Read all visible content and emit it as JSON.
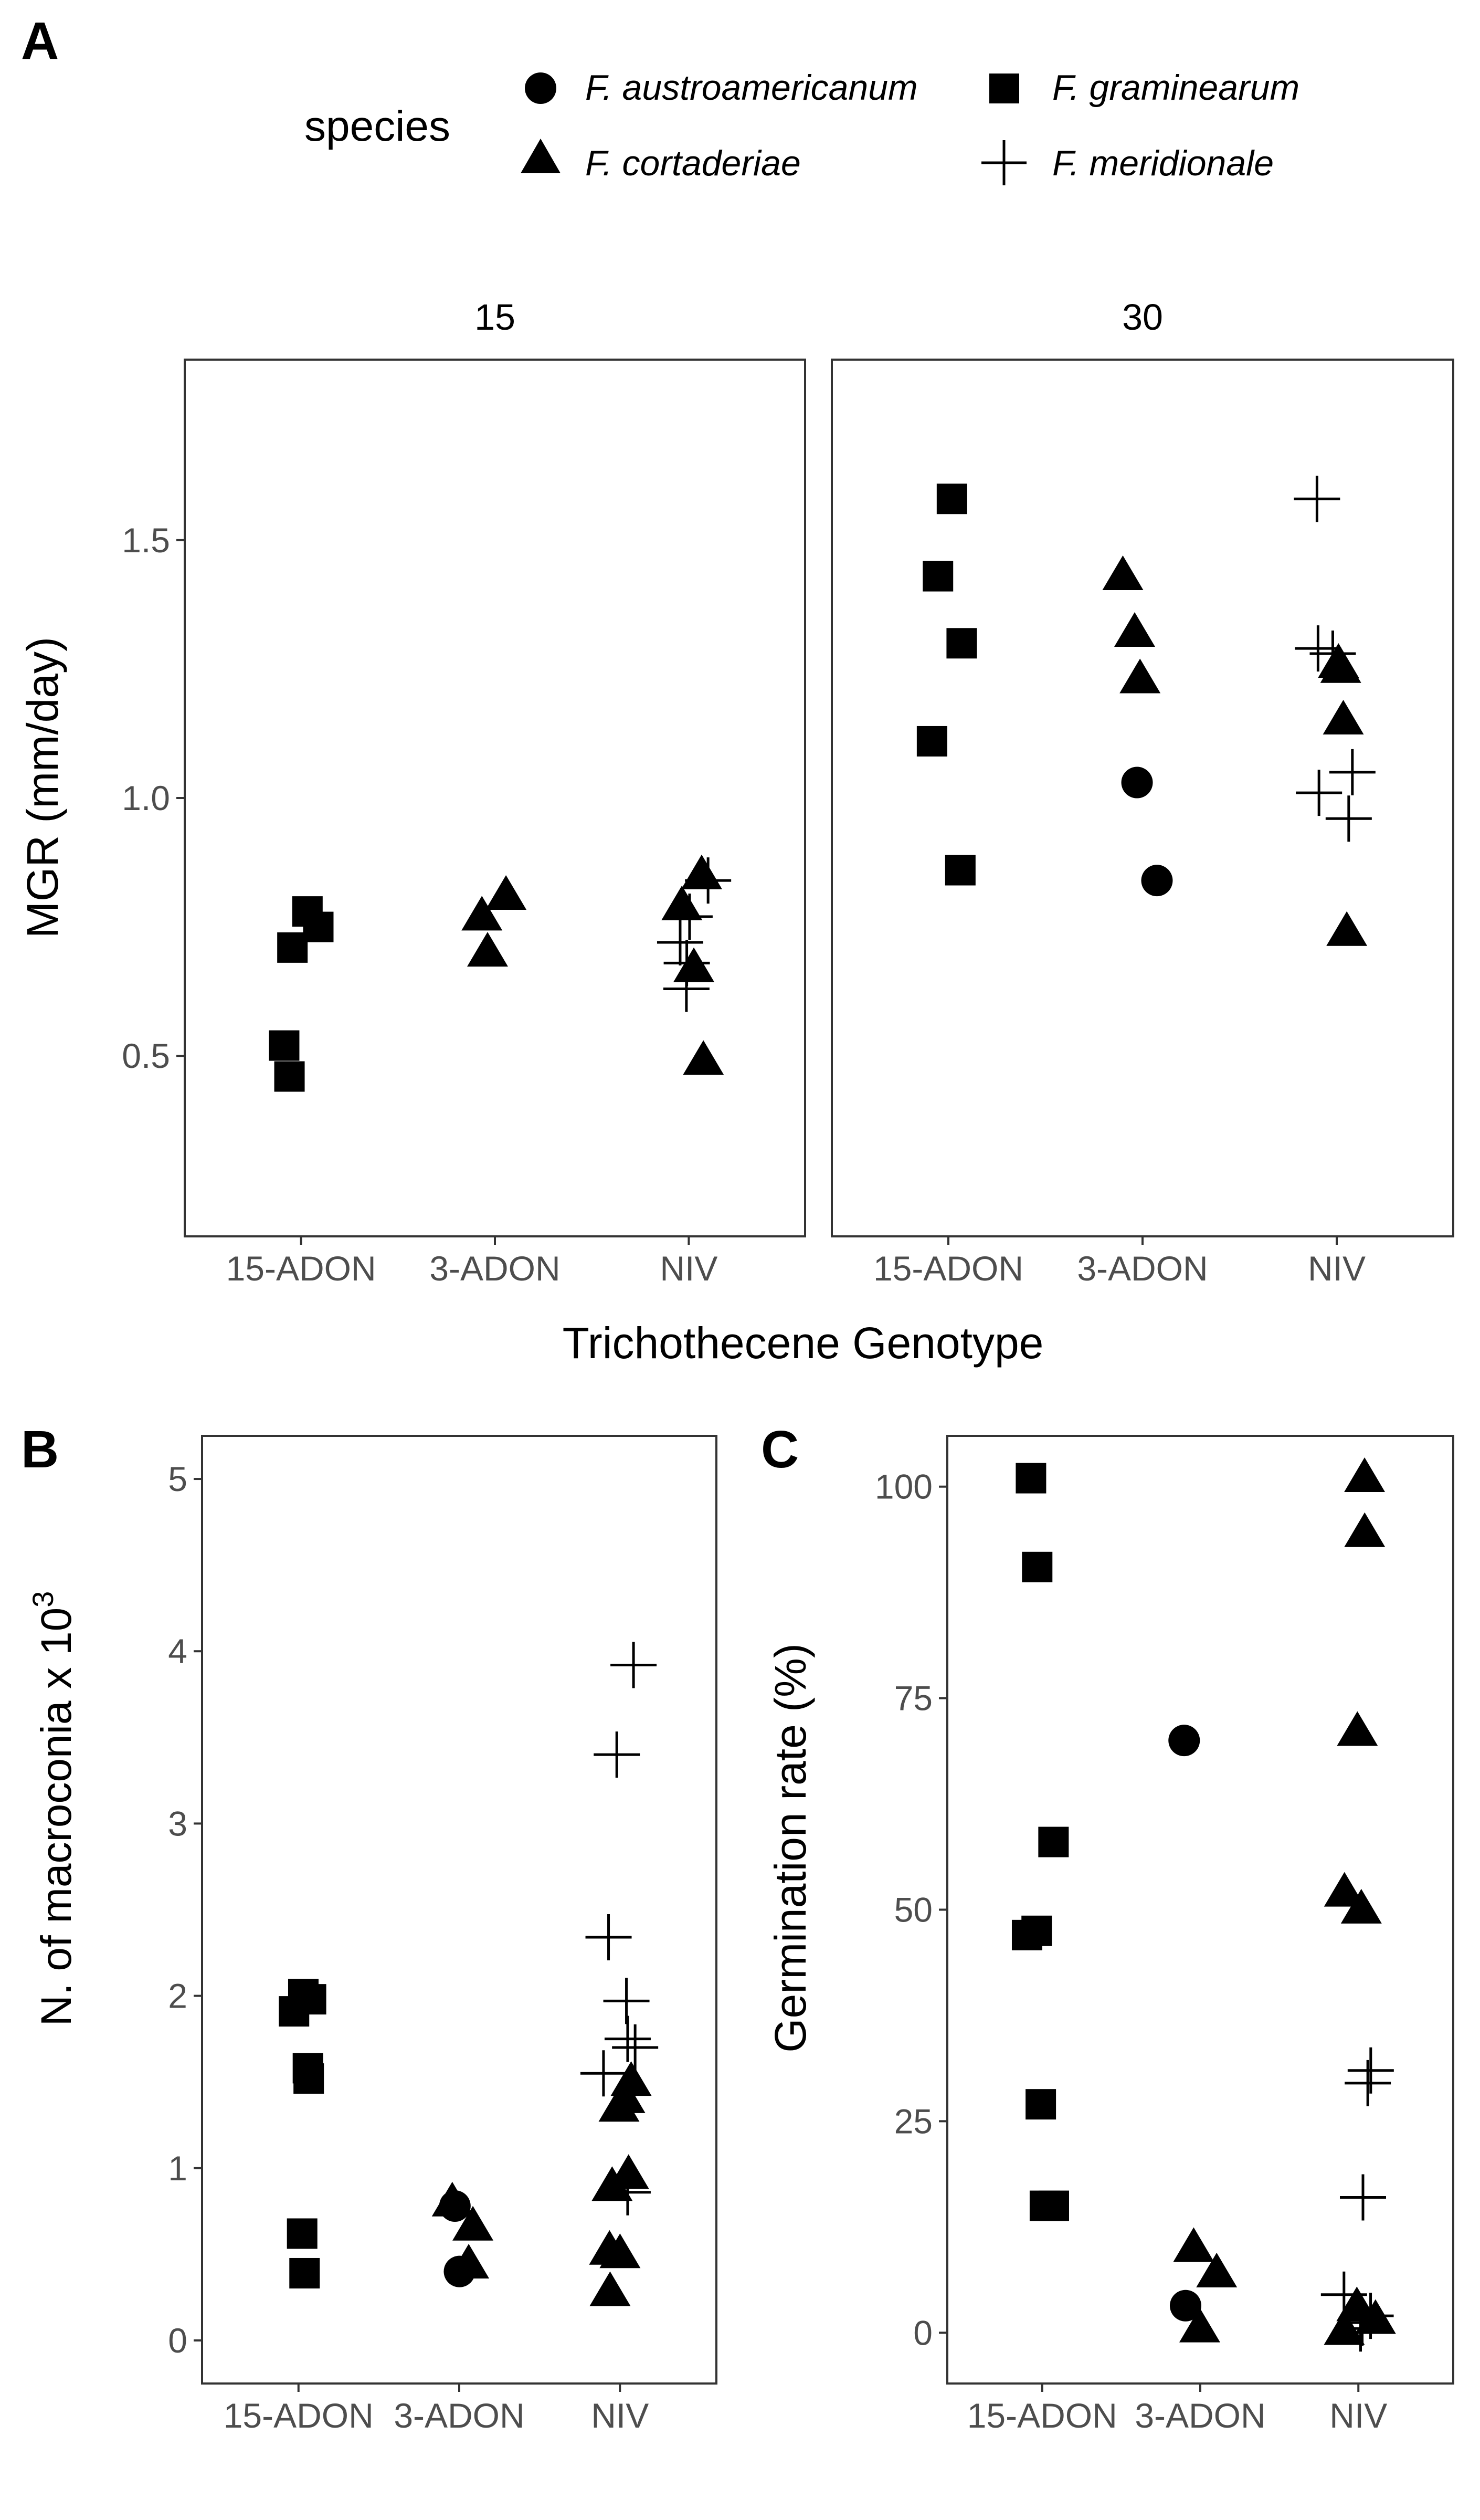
{
  "figure": {
    "panel_labels": {
      "a": "A",
      "b": "B",
      "c": "C"
    },
    "legend": {
      "title": "species",
      "entries": [
        {
          "name": "F. austroamericanum",
          "shape": "circle"
        },
        {
          "name": "F. graminearum",
          "shape": "square"
        },
        {
          "name": "F. cortaderiae",
          "shape": "triangle"
        },
        {
          "name": "F. meridionale",
          "shape": "plus"
        }
      ]
    },
    "marker_color": "#000000"
  },
  "chart_data": [
    {
      "id": "A",
      "type": "scatter",
      "title": "",
      "xlabel": "Trichothecene Genotype",
      "ylabel": "MGR (mm/day)",
      "facets": [
        {
          "strip": "15",
          "categories": [
            "15-ADON",
            "3-ADON",
            "NIV"
          ],
          "series": [
            {
              "name": "F. graminearum",
              "shape": "square",
              "points": [
                {
                  "x": "15-ADON",
                  "y": 0.78
                },
                {
                  "x": "15-ADON",
                  "y": 0.75
                },
                {
                  "x": "15-ADON",
                  "y": 0.71
                },
                {
                  "x": "15-ADON",
                  "y": 0.52
                },
                {
                  "x": "15-ADON",
                  "y": 0.46
                }
              ]
            },
            {
              "name": "F. cortaderiae",
              "shape": "triangle",
              "points": [
                {
                  "x": "3-ADON",
                  "y": 0.81
                },
                {
                  "x": "3-ADON",
                  "y": 0.77
                },
                {
                  "x": "3-ADON",
                  "y": 0.7
                },
                {
                  "x": "NIV",
                  "y": 0.85
                },
                {
                  "x": "NIV",
                  "y": 0.79
                },
                {
                  "x": "NIV",
                  "y": 0.67
                },
                {
                  "x": "NIV",
                  "y": 0.49
                }
              ]
            },
            {
              "name": "F. meridionale",
              "shape": "plus",
              "points": [
                {
                  "x": "NIV",
                  "y": 0.84
                },
                {
                  "x": "NIV",
                  "y": 0.77
                },
                {
                  "x": "NIV",
                  "y": 0.72
                },
                {
                  "x": "NIV",
                  "y": 0.68
                },
                {
                  "x": "NIV",
                  "y": 0.63
                }
              ]
            }
          ]
        },
        {
          "strip": "30",
          "categories": [
            "15-ADON",
            "3-ADON",
            "NIV"
          ],
          "series": [
            {
              "name": "F. graminearum",
              "shape": "square",
              "points": [
                {
                  "x": "15-ADON",
                  "y": 1.58
                },
                {
                  "x": "15-ADON",
                  "y": 1.43
                },
                {
                  "x": "15-ADON",
                  "y": 1.3
                },
                {
                  "x": "15-ADON",
                  "y": 1.11
                },
                {
                  "x": "15-ADON",
                  "y": 0.86
                }
              ]
            },
            {
              "name": "F. cortaderiae",
              "shape": "triangle",
              "points": [
                {
                  "x": "3-ADON",
                  "y": 1.43
                },
                {
                  "x": "3-ADON",
                  "y": 1.32
                },
                {
                  "x": "3-ADON",
                  "y": 1.23
                },
                {
                  "x": "NIV",
                  "y": 1.26
                },
                {
                  "x": "NIV",
                  "y": 1.25
                },
                {
                  "x": "NIV",
                  "y": 1.15
                },
                {
                  "x": "NIV",
                  "y": 0.74
                }
              ]
            },
            {
              "name": "F. austroamericanum",
              "shape": "circle",
              "points": [
                {
                  "x": "3-ADON",
                  "y": 1.03
                },
                {
                  "x": "3-ADON",
                  "y": 0.84
                }
              ]
            },
            {
              "name": "F. meridionale",
              "shape": "plus",
              "points": [
                {
                  "x": "NIV",
                  "y": 1.58
                },
                {
                  "x": "NIV",
                  "y": 1.29
                },
                {
                  "x": "NIV",
                  "y": 1.28
                },
                {
                  "x": "NIV",
                  "y": 1.05
                },
                {
                  "x": "NIV",
                  "y": 1.01
                },
                {
                  "x": "NIV",
                  "y": 0.96
                }
              ]
            }
          ]
        }
      ],
      "ylim": [
        0.15,
        1.85
      ],
      "yticks": [
        0.5,
        1.0,
        1.5
      ],
      "ytick_labels": [
        "0.5",
        "1.0",
        "1.5"
      ],
      "grid": false
    },
    {
      "id": "B",
      "type": "scatter",
      "title": "",
      "xlabel": "",
      "ylabel": "N. of macroconia x 10",
      "ylabel_superscript": "3",
      "categories": [
        "15-ADON",
        "3-ADON",
        "NIV"
      ],
      "series": [
        {
          "name": "F. graminearum",
          "shape": "square",
          "points": [
            {
              "x": "15-ADON",
              "y": 2.01
            },
            {
              "x": "15-ADON",
              "y": 1.98
            },
            {
              "x": "15-ADON",
              "y": 1.91
            },
            {
              "x": "15-ADON",
              "y": 1.58
            },
            {
              "x": "15-ADON",
              "y": 1.52
            },
            {
              "x": "15-ADON",
              "y": 0.62
            },
            {
              "x": "15-ADON",
              "y": 0.39
            }
          ]
        },
        {
          "name": "F. cortaderiae",
          "shape": "triangle",
          "points": [
            {
              "x": "3-ADON",
              "y": 0.8
            },
            {
              "x": "3-ADON",
              "y": 0.66
            },
            {
              "x": "3-ADON",
              "y": 0.44
            },
            {
              "x": "NIV",
              "y": 1.5
            },
            {
              "x": "NIV",
              "y": 1.4
            },
            {
              "x": "NIV",
              "y": 1.35
            },
            {
              "x": "NIV",
              "y": 0.96
            },
            {
              "x": "NIV",
              "y": 0.89
            },
            {
              "x": "NIV",
              "y": 0.52
            },
            {
              "x": "NIV",
              "y": 0.5
            },
            {
              "x": "NIV",
              "y": 0.28
            }
          ]
        },
        {
          "name": "F. austroamericanum",
          "shape": "circle",
          "points": [
            {
              "x": "3-ADON",
              "y": 0.78
            },
            {
              "x": "3-ADON",
              "y": 0.4
            }
          ]
        },
        {
          "name": "F. meridionale",
          "shape": "plus",
          "points": [
            {
              "x": "NIV",
              "y": 3.92
            },
            {
              "x": "NIV",
              "y": 3.4
            },
            {
              "x": "NIV",
              "y": 2.34
            },
            {
              "x": "NIV",
              "y": 1.97
            },
            {
              "x": "NIV",
              "y": 1.75
            },
            {
              "x": "NIV",
              "y": 1.7
            },
            {
              "x": "NIV",
              "y": 1.55
            },
            {
              "x": "NIV",
              "y": 0.86
            }
          ]
        }
      ],
      "ylim": [
        -0.25,
        5.25
      ],
      "yticks": [
        0,
        1,
        2,
        3,
        4,
        5
      ],
      "ytick_labels": [
        "0",
        "1",
        "2",
        "3",
        "4",
        "5"
      ],
      "grid": false
    },
    {
      "id": "C",
      "type": "scatter",
      "title": "",
      "xlabel": "",
      "ylabel": "Germination rate (%)",
      "categories": [
        "15-ADON",
        "3-ADON",
        "NIV"
      ],
      "series": [
        {
          "name": "F. graminearum",
          "shape": "square",
          "points": [
            {
              "x": "15-ADON",
              "y": 101
            },
            {
              "x": "15-ADON",
              "y": 90.5
            },
            {
              "x": "15-ADON",
              "y": 58
            },
            {
              "x": "15-ADON",
              "y": 47.5
            },
            {
              "x": "15-ADON",
              "y": 47
            },
            {
              "x": "15-ADON",
              "y": 27
            },
            {
              "x": "15-ADON",
              "y": 15
            },
            {
              "x": "15-ADON",
              "y": 15
            }
          ]
        },
        {
          "name": "F. austroamericanum",
          "shape": "circle",
          "points": [
            {
              "x": "3-ADON",
              "y": 70
            },
            {
              "x": "3-ADON",
              "y": 3.2
            }
          ]
        },
        {
          "name": "F. cortaderiae",
          "shape": "triangle",
          "points": [
            {
              "x": "3-ADON",
              "y": 10
            },
            {
              "x": "3-ADON",
              "y": 7
            },
            {
              "x": "3-ADON",
              "y": 0.5
            },
            {
              "x": "NIV",
              "y": 101
            },
            {
              "x": "NIV",
              "y": 94.5
            },
            {
              "x": "NIV",
              "y": 71
            },
            {
              "x": "NIV",
              "y": 52
            },
            {
              "x": "NIV",
              "y": 50
            },
            {
              "x": "NIV",
              "y": 3
            },
            {
              "x": "NIV",
              "y": 1.5
            },
            {
              "x": "NIV",
              "y": 0.2
            }
          ]
        },
        {
          "name": "F. meridionale",
          "shape": "plus",
          "points": [
            {
              "x": "NIV",
              "y": 31
            },
            {
              "x": "NIV",
              "y": 29.5
            },
            {
              "x": "NIV",
              "y": 16
            },
            {
              "x": "NIV",
              "y": 4.5
            },
            {
              "x": "NIV",
              "y": 2
            },
            {
              "x": "NIV",
              "y": 1.2
            },
            {
              "x": "NIV",
              "y": 0.5
            }
          ]
        }
      ],
      "ylim": [
        -6,
        106
      ],
      "yticks": [
        0,
        25,
        50,
        75,
        100
      ],
      "ytick_labels": [
        "0",
        "25",
        "50",
        "75",
        "100"
      ],
      "grid": false
    }
  ]
}
